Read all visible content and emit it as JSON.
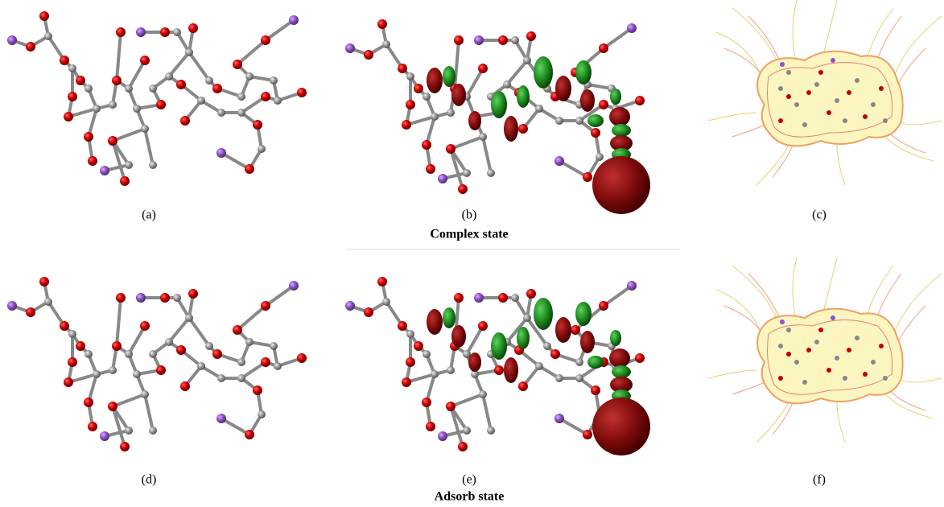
{
  "panels": [
    {
      "label": "(a)"
    },
    {
      "label": "(b)"
    },
    {
      "label": "(c)"
    },
    {
      "label": "(d)"
    },
    {
      "label": "(e)"
    },
    {
      "label": "(f)"
    }
  ],
  "groups": [
    {
      "title": "Complex state"
    },
    {
      "title": "Adsorb state"
    }
  ]
}
